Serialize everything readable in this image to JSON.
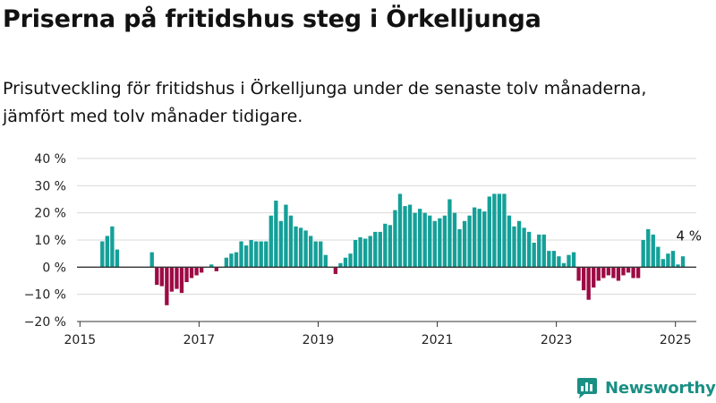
{
  "title": "Priserna på fritidshus steg i Örkelljunga",
  "subtitle": "Prisutveckling för fritidshus i Örkelljunga under de senaste tolv månaderna, jämfört med tolv månader tidigare.",
  "brand": {
    "name": "Newsworthy",
    "icon": "newsworthy-logo-icon",
    "color": "#1a8f84"
  },
  "chart_data": {
    "type": "bar",
    "y_tick_labels": [
      "40 %",
      "30 %",
      "20 %",
      "10 %",
      "0 %",
      "−10 %",
      "−20 %"
    ],
    "y_ticks": [
      40,
      30,
      20,
      10,
      0,
      -10,
      -20
    ],
    "x_tick_labels": [
      "2015",
      "2017",
      "2019",
      "2021",
      "2023",
      "2025"
    ],
    "x_ticks": [
      2015,
      2017,
      2019,
      2021,
      2023,
      2025
    ],
    "ylim": [
      -20,
      40
    ],
    "xlim": [
      2014.95,
      2025.35
    ],
    "grid": true,
    "colors": {
      "positive": "#14a098",
      "negative": "#9c0b45"
    },
    "annotation": {
      "text": "4 %",
      "x": "2025-01"
    },
    "series": [
      {
        "values": [
          [
            "2015-05",
            9.5
          ],
          [
            "2015-06",
            11.5
          ],
          [
            "2015-07",
            15
          ],
          [
            "2015-08",
            6.5
          ],
          [
            "2016-03",
            5.5
          ],
          [
            "2016-04",
            -6.5
          ],
          [
            "2016-05",
            -7
          ],
          [
            "2016-06",
            -14
          ],
          [
            "2016-07",
            -9
          ],
          [
            "2016-08",
            -8
          ],
          [
            "2016-09",
            -9.5
          ],
          [
            "2016-10",
            -5.5
          ],
          [
            "2016-11",
            -4
          ],
          [
            "2016-12",
            -3
          ],
          [
            "2017-01",
            -2
          ],
          [
            "2017-03",
            1
          ],
          [
            "2017-04",
            -1.5
          ],
          [
            "2017-06",
            3.5
          ],
          [
            "2017-07",
            5
          ],
          [
            "2017-08",
            5.5
          ],
          [
            "2017-09",
            9.5
          ],
          [
            "2017-10",
            8
          ],
          [
            "2017-11",
            10
          ],
          [
            "2017-12",
            9.5
          ],
          [
            "2018-01",
            9.5
          ],
          [
            "2018-02",
            9.5
          ],
          [
            "2018-03",
            19
          ],
          [
            "2018-04",
            24.5
          ],
          [
            "2018-05",
            17
          ],
          [
            "2018-06",
            23
          ],
          [
            "2018-07",
            19
          ],
          [
            "2018-08",
            15
          ],
          [
            "2018-09",
            14.5
          ],
          [
            "2018-10",
            13.5
          ],
          [
            "2018-11",
            11.5
          ],
          [
            "2018-12",
            9.5
          ],
          [
            "2019-01",
            9.5
          ],
          [
            "2019-02",
            4.5
          ],
          [
            "2019-04",
            -2.5
          ],
          [
            "2019-05",
            1.5
          ],
          [
            "2019-06",
            3.5
          ],
          [
            "2019-07",
            5
          ],
          [
            "2019-08",
            10
          ],
          [
            "2019-09",
            11
          ],
          [
            "2019-10",
            10.5
          ],
          [
            "2019-11",
            11.5
          ],
          [
            "2019-12",
            13
          ],
          [
            "2020-01",
            13
          ],
          [
            "2020-02",
            16
          ],
          [
            "2020-03",
            15.5
          ],
          [
            "2020-04",
            21
          ],
          [
            "2020-05",
            27
          ],
          [
            "2020-06",
            22.5
          ],
          [
            "2020-07",
            23
          ],
          [
            "2020-08",
            20
          ],
          [
            "2020-09",
            21.5
          ],
          [
            "2020-10",
            20
          ],
          [
            "2020-11",
            19
          ],
          [
            "2020-12",
            17
          ],
          [
            "2021-01",
            18
          ],
          [
            "2021-02",
            19
          ],
          [
            "2021-03",
            25
          ],
          [
            "2021-04",
            20
          ],
          [
            "2021-05",
            14
          ],
          [
            "2021-06",
            17
          ],
          [
            "2021-07",
            19
          ],
          [
            "2021-08",
            22
          ],
          [
            "2021-09",
            21.5
          ],
          [
            "2021-10",
            20.5
          ],
          [
            "2021-11",
            26
          ],
          [
            "2021-12",
            27
          ],
          [
            "2022-01",
            27
          ],
          [
            "2022-02",
            27
          ],
          [
            "2022-03",
            19
          ],
          [
            "2022-04",
            15
          ],
          [
            "2022-05",
            17
          ],
          [
            "2022-06",
            14.5
          ],
          [
            "2022-07",
            13
          ],
          [
            "2022-08",
            9
          ],
          [
            "2022-09",
            12
          ],
          [
            "2022-10",
            12
          ],
          [
            "2022-11",
            6
          ],
          [
            "2022-12",
            6
          ],
          [
            "2023-01",
            4
          ],
          [
            "2023-02",
            1.5
          ],
          [
            "2023-03",
            4.5
          ],
          [
            "2023-04",
            5.5
          ],
          [
            "2023-05",
            -5
          ],
          [
            "2023-06",
            -8.5
          ],
          [
            "2023-07",
            -12
          ],
          [
            "2023-08",
            -7.5
          ],
          [
            "2023-09",
            -5
          ],
          [
            "2023-10",
            -4
          ],
          [
            "2023-11",
            -3
          ],
          [
            "2023-12",
            -4
          ],
          [
            "2024-01",
            -5
          ],
          [
            "2024-02",
            -3
          ],
          [
            "2024-03",
            -2
          ],
          [
            "2024-04",
            -4
          ],
          [
            "2024-05",
            -4
          ],
          [
            "2024-06",
            10
          ],
          [
            "2024-07",
            14
          ],
          [
            "2024-08",
            12
          ],
          [
            "2024-09",
            7.5
          ],
          [
            "2024-10",
            3
          ],
          [
            "2024-11",
            5
          ],
          [
            "2024-12",
            6
          ],
          [
            "2025-01",
            1
          ],
          [
            "2025-02",
            4
          ]
        ]
      }
    ]
  }
}
